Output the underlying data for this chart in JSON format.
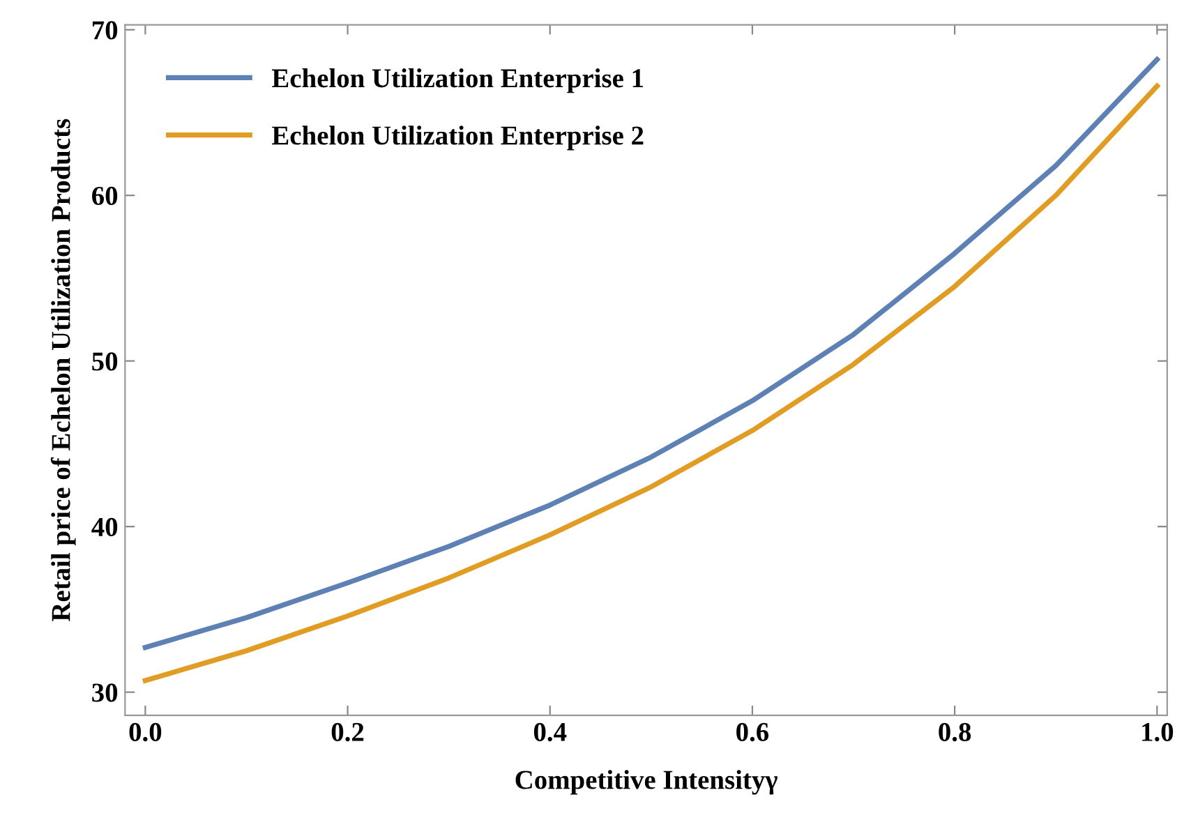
{
  "chart_data": {
    "type": "line",
    "xlabel": "Competitive Intensityγ",
    "ylabel": "Retail price of Echelon Utilization Products",
    "x": [
      0,
      0.1,
      0.2,
      0.3,
      0.4,
      0.5,
      0.6,
      0.7,
      0.8,
      0.9,
      1.0
    ],
    "series": [
      {
        "name": "Echelon Utilization Enterprise 1",
        "color": "#5e81b5",
        "values": [
          32.7,
          34.5,
          36.6,
          38.8,
          41.3,
          44.2,
          47.6,
          51.6,
          56.5,
          61.8,
          68.2
        ]
      },
      {
        "name": "Echelon Utilization Enterprise 2",
        "color": "#e19c24",
        "values": [
          30.7,
          32.5,
          34.6,
          36.9,
          39.5,
          42.4,
          45.8,
          49.8,
          54.5,
          60.0,
          66.6
        ]
      }
    ],
    "xlim": [
      -0.02,
      1.01
    ],
    "ylim": [
      28.6,
      70.3
    ],
    "xticks": [
      {
        "value": 0,
        "label": "0.0"
      },
      0.2,
      0.4,
      0.6,
      0.8,
      {
        "value": 1.0,
        "label": "1.0"
      }
    ],
    "yticks": [
      30,
      40,
      50,
      60,
      70
    ],
    "grid": false,
    "legend": "top left",
    "marker": "none",
    "line_style": "solid"
  }
}
